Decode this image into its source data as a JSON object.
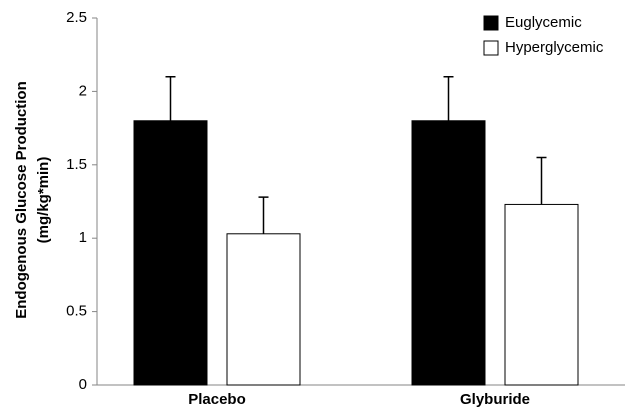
{
  "chart_data": {
    "type": "bar",
    "ylabel": [
      "Endogenous Glucose Production",
      "(mg/kg*min)"
    ],
    "categories": [
      "Placebo",
      "Glyburide"
    ],
    "series": [
      {
        "name": "Euglycemic",
        "color": "#000000",
        "values": [
          1.8,
          1.8
        ],
        "errors": [
          0.3,
          0.3
        ]
      },
      {
        "name": "Hyperglycemic",
        "color": "#ffffff",
        "values": [
          1.03,
          1.23
        ],
        "errors": [
          0.25,
          0.32
        ]
      }
    ],
    "ylim": [
      0,
      2.5
    ],
    "yticks": [
      0,
      0.5,
      1,
      1.5,
      2,
      2.5
    ],
    "legend": "top-right"
  }
}
